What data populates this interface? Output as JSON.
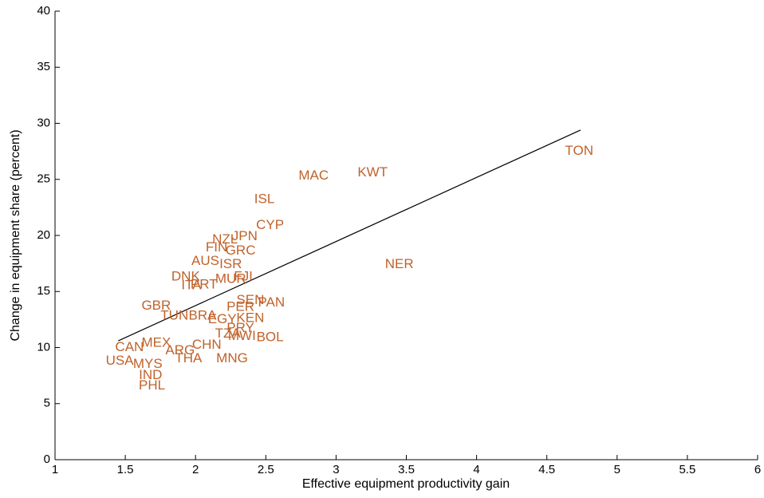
{
  "chart_data": {
    "type": "scatter",
    "x_label": "Effective equipment productivity gain",
    "y_label": "Change in equipment share (percent)",
    "labels": [
      "TON",
      "KWT",
      "MAC",
      "ISL",
      "CYP",
      "JPN",
      "NZL",
      "NER",
      "GRC",
      "FIN",
      "ISR",
      "AUS",
      "FJI",
      "MUR",
      "DNK",
      "ITA",
      "PRT",
      "SEN",
      "PAN",
      "PER",
      "TUN",
      "BRA",
      "EGY",
      "KEN",
      "PRY",
      "TZA",
      "MWI",
      "BOL",
      "GBR",
      "CAN",
      "MEX",
      "ARG",
      "CHN",
      "THA",
      "MNG",
      "USA",
      "MYS",
      "IND",
      "PHL"
    ],
    "x": [
      4.73,
      3.26,
      2.84,
      2.49,
      2.53,
      2.35,
      2.21,
      3.45,
      2.32,
      2.15,
      2.25,
      2.07,
      2.34,
      2.25,
      1.93,
      1.97,
      2.06,
      2.39,
      2.54,
      2.32,
      1.85,
      2.05,
      2.19,
      2.39,
      2.32,
      2.23,
      2.33,
      2.53,
      1.72,
      1.53,
      1.72,
      1.89,
      2.08,
      1.95,
      2.26,
      1.46,
      1.66,
      1.68,
      1.69
    ],
    "y": [
      27.5,
      25.6,
      25.3,
      23.2,
      20.9,
      19.9,
      19.6,
      17.4,
      18.6,
      18.9,
      17.4,
      17.7,
      16.3,
      16.1,
      16.3,
      15.5,
      15.6,
      14.2,
      14.0,
      13.6,
      12.8,
      12.8,
      12.5,
      12.6,
      11.7,
      11.2,
      11.0,
      10.9,
      13.7,
      10.0,
      10.4,
      9.7,
      10.2,
      9.0,
      9.0,
      8.8,
      8.5,
      7.5,
      6.6
    ],
    "color": "#c0622a",
    "fit_line": {
      "x": [
        1.45,
        4.74
      ],
      "y": [
        10.6,
        29.4
      ],
      "color": "#000000"
    },
    "xlim": [
      1,
      6
    ],
    "xticks": [
      1,
      1.5,
      2,
      2.5,
      3,
      3.5,
      4,
      4.5,
      5,
      5.5,
      6
    ],
    "ylim": [
      0,
      40
    ],
    "yticks": [
      0,
      5,
      10,
      15,
      20,
      25,
      30,
      35,
      40
    ]
  }
}
